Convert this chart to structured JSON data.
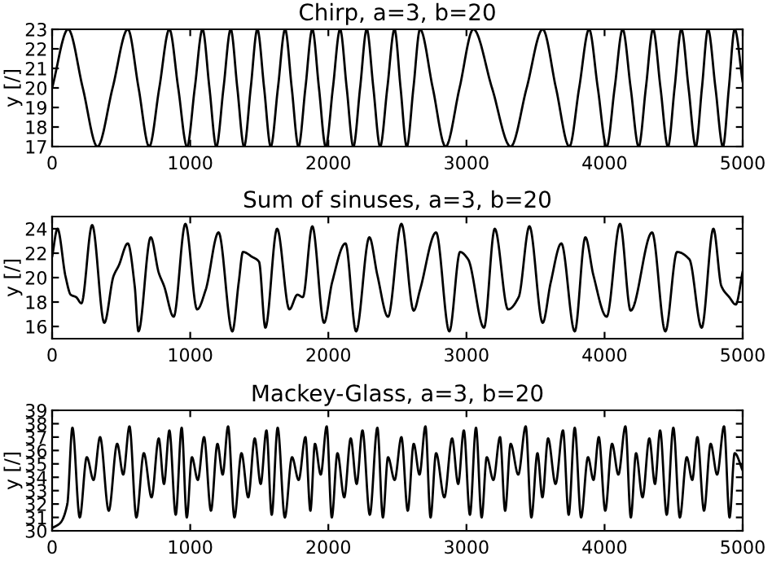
{
  "chart_data": [
    {
      "type": "line",
      "title": "Chirp, a=3, b=20",
      "ylabel": "y [/]",
      "xlim": [
        0,
        5000
      ],
      "ylim": [
        17,
        23
      ],
      "xticks": [
        0,
        1000,
        2000,
        3000,
        4000,
        5000
      ],
      "yticks": [
        17,
        18,
        19,
        20,
        21,
        22,
        23
      ],
      "grid": false,
      "legend": false,
      "series": [
        {
          "color": "#000000",
          "x": [
            0,
            116,
            222,
            328,
            438,
            548,
            626,
            703,
            776,
            849,
            913,
            977,
            1033,
            1089,
            1139,
            1189,
            1241,
            1293,
            1341,
            1390,
            1438,
            1486,
            1535,
            1583,
            1635,
            1687,
            1735,
            1784,
            1834,
            1884,
            1932,
            1981,
            2033,
            2085,
            2133,
            2181,
            2230,
            2278,
            2326,
            2375,
            2427,
            2479,
            2523,
            2568,
            2616,
            2664,
            2756,
            2849,
            2950,
            3050,
            3185,
            3320,
            3436,
            3552,
            3648,
            3745,
            3816,
            3888,
            3951,
            4015,
            4073,
            4131,
            4189,
            4247,
            4299,
            4351,
            4405,
            4459,
            4507,
            4556,
            4608,
            4660,
            4705,
            4749,
            4803,
            4857,
            4900,
            4942,
            5000
          ],
          "values": [
            20,
            23,
            20,
            17,
            20,
            23,
            20,
            17,
            20,
            23,
            20,
            17,
            20,
            23,
            20,
            17,
            20,
            23,
            20,
            17,
            20,
            23,
            20,
            17,
            20,
            23,
            20,
            17,
            20,
            23,
            20,
            17,
            20,
            23,
            20,
            17,
            20,
            23,
            20,
            17,
            20,
            23,
            20,
            17,
            20,
            23,
            20,
            17,
            20,
            23,
            20,
            17,
            20,
            23,
            20,
            17,
            20,
            23,
            20,
            17,
            20,
            23,
            20,
            17,
            20,
            23,
            20,
            17,
            20,
            23,
            20,
            17,
            20,
            23,
            20,
            17,
            20,
            23,
            20.3
          ]
        }
      ]
    },
    {
      "type": "line",
      "title": "Sum of sinuses, a=3, b=20",
      "ylabel": "y [/]",
      "xlim": [
        0,
        5000
      ],
      "ylim": [
        15,
        25
      ],
      "xticks": [
        0,
        1000,
        2000,
        3000,
        4000,
        5000
      ],
      "yticks": [
        16,
        18,
        20,
        22,
        24
      ],
      "grid": false,
      "legend": false,
      "series": [
        {
          "color": "#000000",
          "x": [
            0,
            39,
            97,
            135,
            174,
            212,
            290,
            378,
            444,
            483,
            548,
            598,
            625,
            714,
            772,
            811,
            880,
            965,
            1050,
            1112,
            1205,
            1305,
            1351,
            1382,
            1448,
            1498,
            1544,
            1629,
            1718,
            1776,
            1815,
            1884,
            1969,
            2027,
            2124,
            2201,
            2297,
            2355,
            2432,
            2529,
            2618,
            2664,
            2780,
            2876,
            2954,
            3012,
            3127,
            3205,
            3301,
            3378,
            3456,
            3552,
            3610,
            3687,
            3784,
            3861,
            3919,
            4015,
            4112,
            4189,
            4344,
            4440,
            4525,
            4614,
            4703,
            4788,
            4846,
            4903,
            4950,
            5000
          ],
          "values": [
            21.7,
            24.0,
            20.1,
            18.6,
            18.4,
            17.9,
            24.3,
            16.3,
            20.1,
            21.0,
            22.8,
            19.3,
            15.6,
            23.3,
            20.4,
            19.3,
            16.8,
            24.4,
            17.4,
            19.0,
            23.7,
            15.6,
            19.6,
            22.1,
            21.7,
            21.3,
            15.9,
            24.0,
            17.4,
            18.6,
            18.4,
            24.2,
            16.3,
            19.6,
            22.8,
            15.6,
            23.3,
            20.2,
            16.8,
            24.4,
            17.3,
            19.0,
            23.7,
            15.6,
            22.1,
            21.5,
            15.9,
            24.0,
            17.4,
            18.4,
            24.2,
            16.3,
            19.6,
            22.8,
            15.6,
            23.3,
            20.2,
            16.8,
            24.4,
            17.3,
            23.7,
            15.6,
            22.1,
            21.5,
            15.9,
            24.0,
            19.3,
            18.4,
            17.8,
            20.5
          ]
        }
      ]
    },
    {
      "type": "line",
      "title": "Mackey-Glass, a=3, b=20",
      "ylabel": "y [/]",
      "xlim": [
        0,
        5000
      ],
      "ylim": [
        30,
        39
      ],
      "xticks": [
        0,
        1000,
        2000,
        3000,
        4000,
        5000
      ],
      "yticks": [
        30,
        31,
        32,
        33,
        34,
        35,
        36,
        37,
        38,
        39
      ],
      "grid": false,
      "legend": false,
      "series": [
        {
          "color": "#000000",
          "x": [
            0,
            60,
            110,
            147,
            200,
            251,
            300,
            347,
            410,
            471,
            515,
            560,
            610,
            664,
            720,
            772,
            810,
            849,
            895,
            938,
            975,
            1012,
            1055,
            1100,
            1150,
            1197,
            1235,
            1274,
            1320,
            1371,
            1420,
            1467,
            1510,
            1552,
            1590,
            1633,
            1685,
            1737,
            1785,
            1834,
            1870,
            1903,
            1945,
            1988,
            2025,
            2066,
            2115,
            2162,
            2205,
            2247,
            2300,
            2355,
            2395,
            2432,
            2480,
            2529,
            2575,
            2618,
            2660,
            2703,
            2740,
            2780,
            2840,
            2896,
            2940,
            2981,
            3025,
            3069,
            3110,
            3147,
            3195,
            3243,
            3280,
            3320,
            3375,
            3429,
            3470,
            3514,
            3550,
            3591,
            3645,
            3699,
            3740,
            3784,
            3830,
            3880,
            3920,
            3958,
            4005,
            4054,
            4100,
            4151,
            4190,
            4228,
            4275,
            4324,
            4365,
            4402,
            4450,
            4498,
            4545,
            4595,
            4635,
            4672,
            4720,
            4768,
            4815,
            4865,
            4905,
            4942,
            5000
          ],
          "values": [
            30.2,
            30.6,
            32.0,
            37.7,
            31.0,
            35.5,
            33.8,
            37.0,
            31.5,
            36.5,
            34.2,
            37.8,
            31.0,
            35.8,
            32.5,
            36.9,
            33.5,
            37.5,
            31.2,
            37.7,
            31.0,
            35.5,
            33.8,
            37.0,
            31.5,
            36.5,
            34.2,
            37.8,
            31.0,
            35.8,
            32.5,
            36.9,
            33.5,
            37.5,
            31.2,
            37.7,
            31.0,
            35.5,
            33.8,
            37.0,
            31.5,
            36.5,
            34.2,
            37.8,
            31.0,
            35.8,
            32.5,
            36.9,
            33.5,
            37.5,
            31.2,
            37.7,
            31.0,
            35.5,
            33.8,
            37.0,
            31.5,
            36.5,
            34.2,
            37.8,
            31.0,
            35.8,
            32.5,
            36.9,
            33.5,
            37.5,
            31.2,
            37.7,
            31.0,
            35.5,
            33.8,
            37.0,
            31.5,
            36.5,
            34.2,
            37.8,
            31.0,
            35.8,
            32.5,
            36.9,
            33.5,
            37.5,
            31.2,
            37.7,
            31.0,
            35.5,
            33.8,
            37.0,
            31.5,
            36.5,
            34.2,
            37.8,
            31.0,
            35.8,
            32.5,
            36.9,
            33.5,
            37.5,
            31.2,
            37.7,
            31.0,
            35.5,
            33.8,
            37.0,
            31.5,
            36.5,
            34.2,
            37.8,
            31.0,
            35.8,
            34.5
          ]
        }
      ]
    }
  ]
}
